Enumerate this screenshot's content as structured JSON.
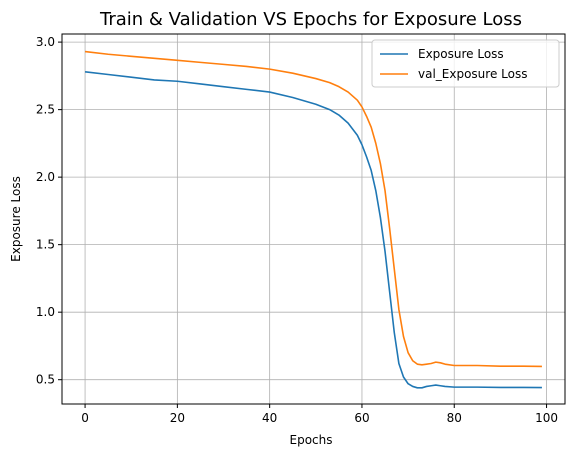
{
  "chart_data": {
    "type": "line",
    "title": "Train & Validation VS Epochs for Exposure Loss",
    "xlabel": "Epochs",
    "ylabel": "Exposure Loss",
    "xlim": [
      -5,
      104
    ],
    "ylim": [
      0.32,
      3.06
    ],
    "xticks": [
      0,
      20,
      40,
      60,
      80,
      100
    ],
    "yticks": [
      0.5,
      1.0,
      1.5,
      2.0,
      2.5,
      3.0
    ],
    "grid": true,
    "legend_position": "top-right",
    "series": [
      {
        "name": "Exposure Loss",
        "color": "#1f77b4",
        "x": [
          0,
          5,
          10,
          15,
          20,
          25,
          30,
          35,
          40,
          45,
          50,
          53,
          55,
          57,
          59,
          60,
          61,
          62,
          63,
          64,
          65,
          66,
          67,
          68,
          69,
          70,
          71,
          72,
          73,
          74,
          75,
          76,
          77,
          78,
          80,
          85,
          90,
          95,
          99
        ],
        "y": [
          2.78,
          2.76,
          2.74,
          2.72,
          2.71,
          2.69,
          2.67,
          2.65,
          2.63,
          2.59,
          2.54,
          2.5,
          2.46,
          2.4,
          2.31,
          2.24,
          2.15,
          2.05,
          1.9,
          1.7,
          1.45,
          1.15,
          0.85,
          0.62,
          0.52,
          0.47,
          0.45,
          0.44,
          0.44,
          0.45,
          0.455,
          0.46,
          0.455,
          0.45,
          0.445,
          0.445,
          0.443,
          0.443,
          0.442
        ]
      },
      {
        "name": "val_Exposure Loss",
        "color": "#ff7f0e",
        "x": [
          0,
          5,
          10,
          15,
          20,
          25,
          30,
          35,
          40,
          45,
          50,
          53,
          55,
          57,
          59,
          60,
          61,
          62,
          63,
          64,
          65,
          66,
          67,
          68,
          69,
          70,
          71,
          72,
          73,
          74,
          75,
          76,
          77,
          78,
          80,
          85,
          90,
          95,
          99
        ],
        "y": [
          2.93,
          2.91,
          2.895,
          2.88,
          2.865,
          2.85,
          2.835,
          2.82,
          2.8,
          2.77,
          2.73,
          2.7,
          2.67,
          2.63,
          2.57,
          2.52,
          2.45,
          2.37,
          2.25,
          2.1,
          1.9,
          1.62,
          1.32,
          1.02,
          0.82,
          0.7,
          0.64,
          0.615,
          0.61,
          0.615,
          0.62,
          0.63,
          0.625,
          0.615,
          0.605,
          0.605,
          0.6,
          0.6,
          0.598
        ]
      }
    ]
  }
}
